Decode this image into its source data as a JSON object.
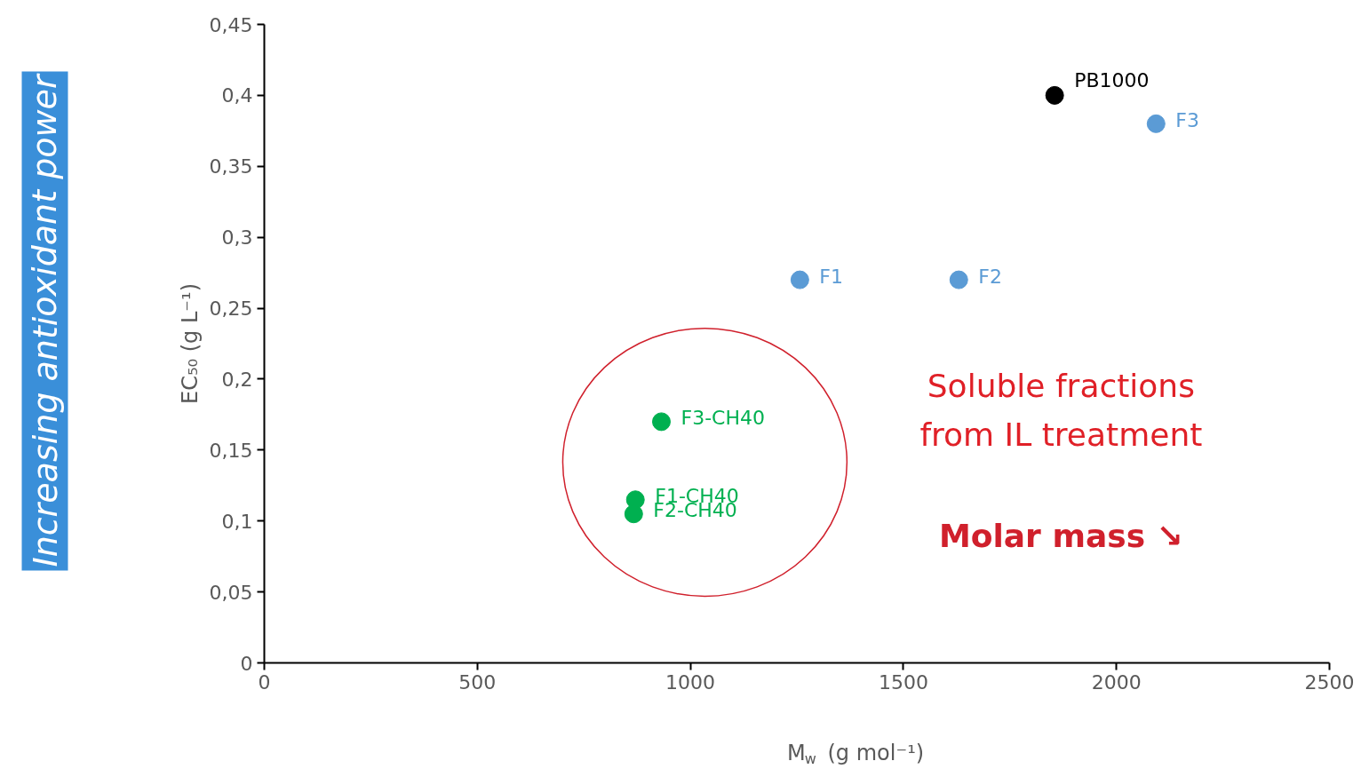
{
  "chart_data": {
    "type": "scatter",
    "xlabel": "M$_{w}$ (g mol⁻¹)",
    "ylabel": "EC₅₀ (g L⁻¹)",
    "xlim": [
      0,
      2500
    ],
    "xticks": [
      0,
      500,
      1000,
      1500,
      2000,
      2500
    ],
    "ylim": [
      0,
      0.45
    ],
    "yticks": [
      {
        "value": 0,
        "label": "0"
      },
      {
        "value": 0.05,
        "label": "0,05"
      },
      {
        "value": 0.1,
        "label": "0,1"
      },
      {
        "value": 0.15,
        "label": "0,15"
      },
      {
        "value": 0.2,
        "label": "0,2"
      },
      {
        "value": 0.25,
        "label": "0,25"
      },
      {
        "value": 0.3,
        "label": "0,3"
      },
      {
        "value": 0.35,
        "label": "0,35"
      },
      {
        "value": 0.4,
        "label": "0,4"
      },
      {
        "value": 0.45,
        "label": "0,45"
      }
    ],
    "grid": false,
    "marker": "circle",
    "series": [
      {
        "name": "PB1000",
        "color": "#000000",
        "x": [
          1855
        ],
        "values": [
          0.4
        ]
      },
      {
        "name": "F3",
        "color": "#5b9bd5",
        "x": [
          2093
        ],
        "values": [
          0.38
        ]
      },
      {
        "name": "F1",
        "color": "#5b9bd5",
        "x": [
          1257
        ],
        "values": [
          0.27
        ]
      },
      {
        "name": "F2",
        "color": "#5b9bd5",
        "x": [
          1630
        ],
        "values": [
          0.27
        ]
      },
      {
        "name": "F3-CH40",
        "color": "#00b050",
        "x": [
          932
        ],
        "values": [
          0.17
        ]
      },
      {
        "name": "F1-CH40",
        "color": "#00b050",
        "x": [
          871
        ],
        "values": [
          0.115
        ]
      },
      {
        "name": "F2-CH40",
        "color": "#00b050",
        "x": [
          867
        ],
        "values": [
          0.105
        ]
      }
    ],
    "annotations": [
      "Increasing antioxidant power",
      "Soluble fractions\nfrom IL treatment",
      "Molar mass ↘"
    ]
  }
}
